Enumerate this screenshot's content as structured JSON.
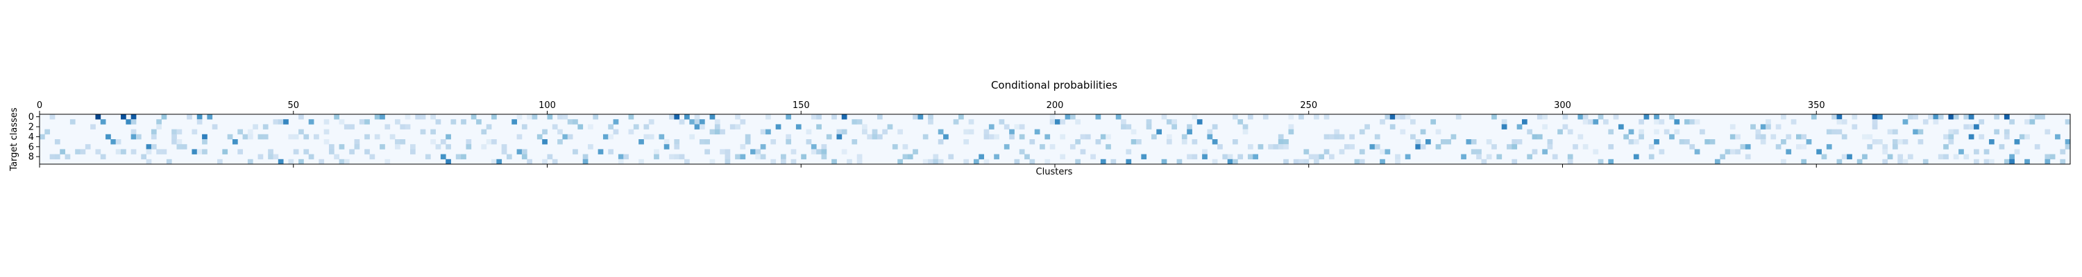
{
  "chart_data": {
    "type": "heatmap",
    "title": "Conditional probabilities",
    "xlabel": "Clusters",
    "ylabel": "Target classes",
    "x_range": [
      0,
      400
    ],
    "y_range": [
      0,
      10
    ],
    "n_clusters": 400,
    "n_classes": 10,
    "x_ticks": [
      0,
      50,
      100,
      150,
      200,
      250,
      300,
      350
    ],
    "y_ticks": [
      0,
      2,
      4,
      6,
      8
    ],
    "colormap": "Blues",
    "value_range": [
      0,
      1
    ],
    "cluster_seed": 20240519,
    "highlighted_cells": [
      {
        "cluster": 11,
        "class": 0,
        "value": 0.92
      },
      {
        "cluster": 16,
        "class": 0,
        "value": 0.88
      },
      {
        "cluster": 18,
        "class": 0,
        "value": 0.84
      },
      {
        "cluster": 125,
        "class": 0,
        "value": 0.8
      },
      {
        "cluster": 158,
        "class": 0,
        "value": 0.78
      },
      {
        "cluster": 266,
        "class": 0,
        "value": 0.78
      },
      {
        "cluster": 361,
        "class": 0,
        "value": 0.82
      },
      {
        "cluster": 376,
        "class": 0,
        "value": 0.84
      },
      {
        "cluster": 387,
        "class": 0,
        "value": 0.82
      },
      {
        "cluster": 354,
        "class": 0,
        "value": 0.75
      },
      {
        "cluster": 380,
        "class": 0,
        "value": 0.7
      },
      {
        "cluster": 67,
        "class": 0,
        "value": 0.55
      },
      {
        "cluster": 147,
        "class": 0,
        "value": 0.5
      },
      {
        "cluster": 303,
        "class": 0,
        "value": 0.52
      },
      {
        "cluster": 318,
        "class": 0,
        "value": 0.55
      },
      {
        "cluster": 388,
        "class": 9,
        "value": 0.7
      },
      {
        "cluster": 209,
        "class": 9,
        "value": 0.62
      },
      {
        "cluster": 18,
        "class": 4,
        "value": 0.55
      },
      {
        "cluster": 191,
        "class": 3,
        "value": 0.5
      },
      {
        "cluster": 80,
        "class": 4,
        "value": 0.45
      }
    ]
  }
}
